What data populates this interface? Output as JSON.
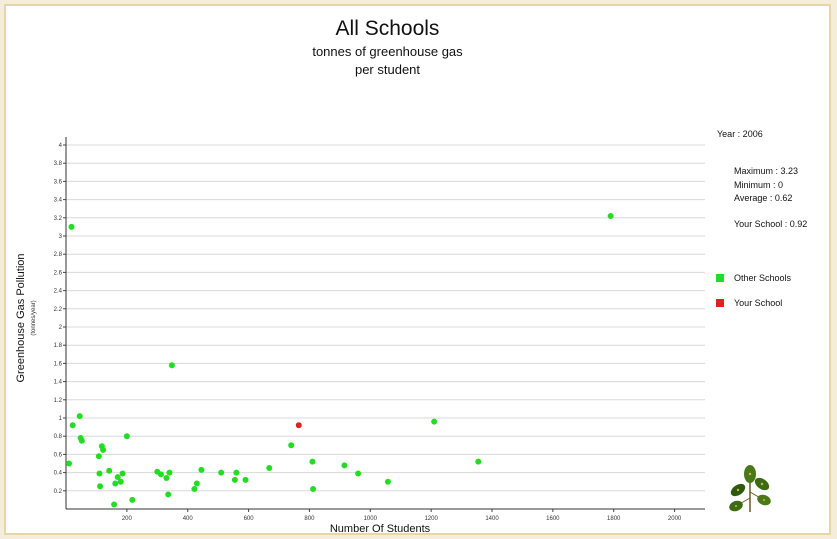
{
  "header": {
    "title": "All Schools",
    "subtitle_line1": "tonnes of greenhouse gas",
    "subtitle_line2": "per student"
  },
  "info": {
    "year": "Year : 2006",
    "maximum": "Maximum : 3.23",
    "minimum": "Minimum : 0",
    "average": "Average : 0.62",
    "your_school": "Your School : 0.92"
  },
  "legend": [
    {
      "label": "Other Schools",
      "color": "#22dd22"
    },
    {
      "label": "Your School",
      "color": "#dd2222"
    }
  ],
  "logo": {
    "icon": "leaves-logo-icon"
  },
  "chart_data": {
    "type": "scatter",
    "title": "All Schools",
    "subtitle": "tonnes of greenhouse gas per student",
    "xlabel": "Number Of Students",
    "ylabel": "Greenhouse Gas Pollution",
    "ylabel_unit": "(tonnes/year)",
    "xlim": [
      0,
      2100
    ],
    "ylim": [
      0,
      4.0
    ],
    "x_ticks": [
      "200",
      "400",
      "600",
      "800",
      "1000",
      "1200",
      "1400",
      "1600",
      "1800",
      "2000"
    ],
    "y_ticks": [
      "0.2",
      "0.4",
      "0.6",
      "0.8",
      "1",
      "1.2",
      "1.4",
      "1.6",
      "1.8",
      "2",
      "2.2",
      "2.4",
      "2.6",
      "2.8",
      "3",
      "3.2",
      "3.4",
      "3.6",
      "3.8",
      "4"
    ],
    "grid": true,
    "series": [
      {
        "name": "Other Schools",
        "color": "#22dd22",
        "points": [
          [
            10,
            0.5
          ],
          [
            18,
            3.1
          ],
          [
            22,
            0.92
          ],
          [
            45,
            1.02
          ],
          [
            48,
            0.78
          ],
          [
            52,
            0.75
          ],
          [
            108,
            0.58
          ],
          [
            110,
            0.39
          ],
          [
            112,
            0.25
          ],
          [
            118,
            0.69
          ],
          [
            122,
            0.65
          ],
          [
            142,
            0.42
          ],
          [
            158,
            0.05
          ],
          [
            162,
            0.28
          ],
          [
            170,
            0.35
          ],
          [
            180,
            0.3
          ],
          [
            186,
            0.39
          ],
          [
            200,
            0.8
          ],
          [
            218,
            0.1
          ],
          [
            300,
            0.41
          ],
          [
            312,
            0.38
          ],
          [
            330,
            0.34
          ],
          [
            336,
            0.16
          ],
          [
            340,
            0.4
          ],
          [
            348,
            1.58
          ],
          [
            422,
            0.22
          ],
          [
            430,
            0.28
          ],
          [
            445,
            0.43
          ],
          [
            510,
            0.4
          ],
          [
            555,
            0.32
          ],
          [
            560,
            0.4
          ],
          [
            590,
            0.32
          ],
          [
            668,
            0.45
          ],
          [
            740,
            0.7
          ],
          [
            810,
            0.52
          ],
          [
            812,
            0.22
          ],
          [
            915,
            0.48
          ],
          [
            960,
            0.39
          ],
          [
            1058,
            0.3
          ],
          [
            1210,
            0.96
          ],
          [
            1355,
            0.52
          ],
          [
            1790,
            3.22
          ]
        ]
      },
      {
        "name": "Your School",
        "color": "#dd2222",
        "points": [
          [
            765,
            0.92
          ]
        ]
      }
    ]
  }
}
